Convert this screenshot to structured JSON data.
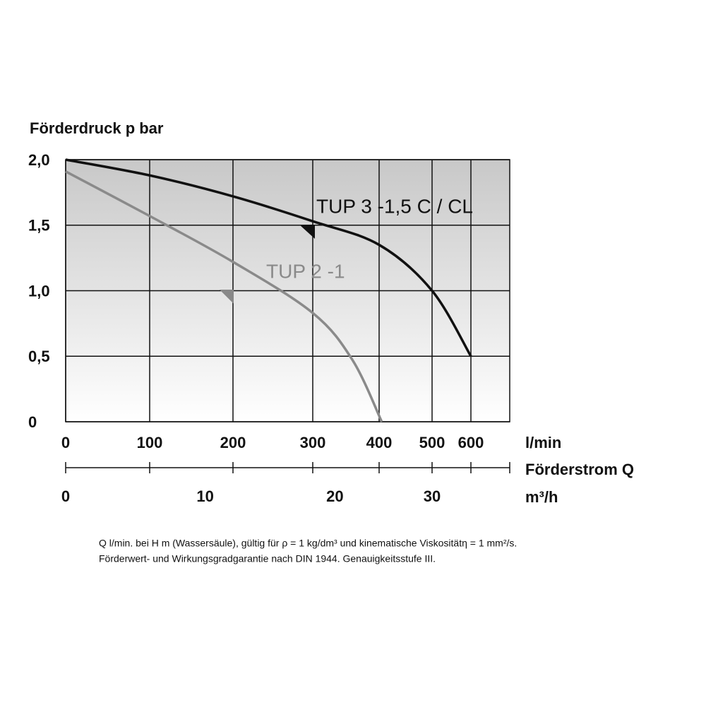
{
  "chart_data": {
    "type": "line",
    "y_label": "Förderdruck p bar",
    "x_label": "l/min",
    "x_axis_title": "Förderstrom Q",
    "x2_label": "m³/h",
    "xlim": [
      0,
      700
    ],
    "xticks": [
      0,
      100,
      200,
      300,
      400,
      500,
      600
    ],
    "x2ticks": [
      0,
      10,
      20,
      30
    ],
    "ylim": [
      0,
      2
    ],
    "yticks": [
      {
        "value": 0,
        "label": "0"
      },
      {
        "value": 0.5,
        "label": "0,5"
      },
      {
        "value": 1,
        "label": "1,0"
      },
      {
        "value": 1.5,
        "label": "1,5"
      },
      {
        "value": 2,
        "label": "2,0"
      }
    ],
    "grid": true,
    "series": [
      {
        "name": "TUP 3 -1,5 C / CL",
        "color": "#111111",
        "x": [
          0,
          100,
          200,
          300,
          400,
          500,
          600
        ],
        "values": [
          2.0,
          1.88,
          1.72,
          1.53,
          1.35,
          1.0,
          0.5
        ]
      },
      {
        "name": "TUP 2 -1",
        "color": "#8a8a8a",
        "x": [
          0,
          100,
          200,
          300,
          360,
          405
        ],
        "values": [
          1.91,
          1.57,
          1.22,
          0.83,
          0.47,
          0
        ]
      }
    ],
    "notes": [
      "Q l/min. bei H m (Wassersäule), gültig für ρ = 1 kg/dm³ und kinematische Viskositätη = 1 mm²/s.",
      "Förderwert- und Wirkungsgradgarantie nach DIN 1944. Genauigkeitsstufe III."
    ]
  }
}
